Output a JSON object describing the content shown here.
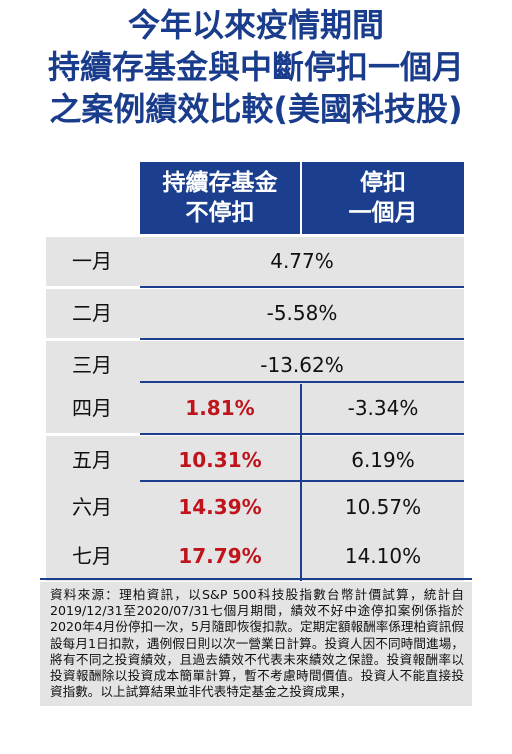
{
  "title": {
    "line1": "今年以來疫情期間",
    "line2": "持續存基金與中斷停扣一個月",
    "line3": "之案例績效比較(美國科技股)"
  },
  "table": {
    "headers": {
      "col1_line1": "持續存基金",
      "col1_line2": "不停扣",
      "col2_line1": "停扣",
      "col2_line2": "一個月"
    },
    "rows": [
      {
        "month": "一月",
        "combined": "4.77%"
      },
      {
        "month": "二月",
        "combined": "-5.58%"
      },
      {
        "month": "三月",
        "combined": "-13.62%"
      },
      {
        "month": "四月",
        "continue": "1.81%",
        "pause": "-3.34%"
      },
      {
        "month": "五月",
        "continue": "10.31%",
        "pause": "6.19%"
      },
      {
        "month": "六月",
        "continue": "14.39%",
        "pause": "10.57%"
      },
      {
        "month": "七月",
        "continue": "17.79%",
        "pause": "14.10%"
      }
    ]
  },
  "colors": {
    "title": "#1a3c8c",
    "header_bg": "#1b3f8e",
    "highlight": "#c0141c",
    "row_bg": "#e4e4e4"
  },
  "footnote": "資料來源：理柏資訊，以S&P 500科技股指數台幣計價試算，統計自2019/12/31至2020/07/31七個月期間，績效不好中途停扣案例係指於2020年4月份停扣一次，5月隨即恢復扣款。定期定額報酬率係理柏資訊假設每月1日扣款，遇例假日則以次一營業日計算。投資人因不同時間進場，將有不同之投資績效，且過去績效不代表未來績效之保證。投資報酬率以投資報酬除以投資成本簡單計算，暫不考慮時間價值。投資人不能直接投資指數。以上試算結果並非代表特定基金之投資成果，"
}
